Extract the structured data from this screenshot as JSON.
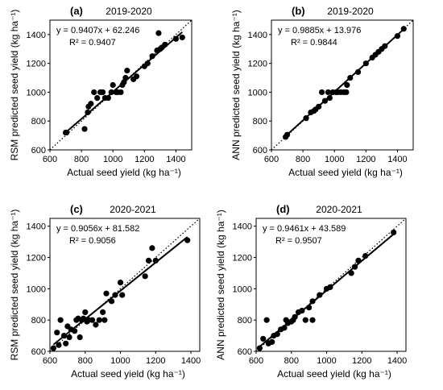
{
  "chart_data": [
    {
      "type": "scatter",
      "panel_label": "(a)",
      "title": "2019-2020",
      "xlabel": "Actual seed yield (kg ha⁻¹)",
      "ylabel": "RSM predicted seed yield (kg ha⁻¹)",
      "xlim": [
        600,
        1500
      ],
      "ylim": [
        600,
        1500
      ],
      "xticks": [
        "600",
        "800",
        "1000",
        "1200",
        "1400"
      ],
      "yticks": [
        "600",
        "800",
        "1000",
        "1200",
        "1400"
      ],
      "equation": "y = 0.9407x + 62.246",
      "r2": "R² = 0.9407",
      "fit": {
        "slope": 0.9407,
        "intercept": 62.246
      },
      "has_1to1_line": true,
      "points": [
        [
          700,
          720
        ],
        [
          705,
          720
        ],
        [
          820,
          745
        ],
        [
          840,
          860
        ],
        [
          845,
          900
        ],
        [
          860,
          920
        ],
        [
          880,
          1000
        ],
        [
          900,
          960
        ],
        [
          920,
          1000
        ],
        [
          935,
          1000
        ],
        [
          950,
          960
        ],
        [
          970,
          960
        ],
        [
          990,
          1000
        ],
        [
          1000,
          1050
        ],
        [
          1020,
          1000
        ],
        [
          1030,
          1000
        ],
        [
          1050,
          1000
        ],
        [
          1060,
          1050
        ],
        [
          1070,
          1070
        ],
        [
          1080,
          1100
        ],
        [
          1090,
          1150
        ],
        [
          1130,
          1090
        ],
        [
          1150,
          1110
        ],
        [
          1200,
          1180
        ],
        [
          1220,
          1200
        ],
        [
          1250,
          1250
        ],
        [
          1280,
          1290
        ],
        [
          1290,
          1410
        ],
        [
          1300,
          1300
        ],
        [
          1310,
          1310
        ],
        [
          1330,
          1330
        ],
        [
          1400,
          1370
        ],
        [
          1440,
          1380
        ]
      ]
    },
    {
      "type": "scatter",
      "panel_label": "(b)",
      "title": "2019-2020",
      "xlabel": "Actual seed yield (kg ha⁻¹)",
      "ylabel": "ANN predicted seed yield (kg ha⁻¹)",
      "xlim": [
        600,
        1500
      ],
      "ylim": [
        600,
        1500
      ],
      "xticks": [
        "600",
        "800",
        "1000",
        "1200",
        "1400"
      ],
      "yticks": [
        "600",
        "800",
        "1000",
        "1200",
        "1400"
      ],
      "equation": "y = 0.9885x + 13.976",
      "r2": "R² = 0.9844",
      "fit": {
        "slope": 0.9885,
        "intercept": 13.976
      },
      "has_1to1_line": true,
      "points": [
        [
          690,
          690
        ],
        [
          700,
          705
        ],
        [
          820,
          820
        ],
        [
          850,
          860
        ],
        [
          870,
          870
        ],
        [
          880,
          880
        ],
        [
          900,
          900
        ],
        [
          920,
          1000
        ],
        [
          940,
          940
        ],
        [
          960,
          1000
        ],
        [
          970,
          960
        ],
        [
          990,
          1000
        ],
        [
          1010,
          1000
        ],
        [
          1020,
          1000
        ],
        [
          1040,
          1000
        ],
        [
          1060,
          1000
        ],
        [
          1075,
          1000
        ],
        [
          1080,
          1050
        ],
        [
          1100,
          1100
        ],
        [
          1150,
          1140
        ],
        [
          1200,
          1200
        ],
        [
          1240,
          1240
        ],
        [
          1260,
          1260
        ],
        [
          1280,
          1280
        ],
        [
          1300,
          1300
        ],
        [
          1320,
          1320
        ],
        [
          1400,
          1390
        ],
        [
          1440,
          1440
        ]
      ]
    },
    {
      "type": "scatter",
      "panel_label": "(c)",
      "title": "2020-2021",
      "xlabel": "Actual seed yield (kg ha⁻¹)",
      "ylabel": "RSM predicted seed yield (kg ha⁻¹)",
      "xlim": [
        600,
        1450
      ],
      "ylim": [
        600,
        1450
      ],
      "xticks": [
        "600",
        "800",
        "1000",
        "1200",
        "1400"
      ],
      "yticks": [
        "600",
        "800",
        "1000",
        "1200",
        "1400"
      ],
      "equation": "y = 0.9056x + 81.582",
      "r2": "R² = 0.9056",
      "fit": {
        "slope": 0.9056,
        "intercept": 81.582
      },
      "has_1to1_line": true,
      "points": [
        [
          620,
          620
        ],
        [
          640,
          720
        ],
        [
          650,
          640
        ],
        [
          660,
          800
        ],
        [
          680,
          700
        ],
        [
          690,
          650
        ],
        [
          700,
          760
        ],
        [
          710,
          690
        ],
        [
          720,
          740
        ],
        [
          740,
          730
        ],
        [
          750,
          800
        ],
        [
          760,
          810
        ],
        [
          770,
          690
        ],
        [
          780,
          800
        ],
        [
          790,
          810
        ],
        [
          800,
          850
        ],
        [
          810,
          790
        ],
        [
          820,
          800
        ],
        [
          840,
          800
        ],
        [
          860,
          770
        ],
        [
          880,
          800
        ],
        [
          900,
          850
        ],
        [
          910,
          800
        ],
        [
          920,
          970
        ],
        [
          950,
          920
        ],
        [
          970,
          960
        ],
        [
          1000,
          1040
        ],
        [
          1010,
          960
        ],
        [
          1140,
          1080
        ],
        [
          1160,
          1180
        ],
        [
          1180,
          1260
        ],
        [
          1200,
          1180
        ],
        [
          1380,
          1310
        ]
      ]
    },
    {
      "type": "scatter",
      "panel_label": "(d)",
      "title": "2020-2021",
      "xlabel": "Actual seed yield (kg ha⁻¹)",
      "ylabel": "ANN predicted seed yield (kg ha⁻¹)",
      "xlim": [
        600,
        1450
      ],
      "ylim": [
        600,
        1450
      ],
      "xticks": [
        "600",
        "800",
        "1000",
        "1200",
        "1400"
      ],
      "yticks": [
        "600",
        "800",
        "1000",
        "1200",
        "1400"
      ],
      "equation": "y = 0.9461x + 43.589",
      "r2": "R² = 0.9507",
      "fit": {
        "slope": 0.9461,
        "intercept": 43.589
      },
      "has_1to1_line": true,
      "points": [
        [
          620,
          620
        ],
        [
          640,
          680
        ],
        [
          660,
          800
        ],
        [
          670,
          650
        ],
        [
          690,
          660
        ],
        [
          700,
          700
        ],
        [
          720,
          710
        ],
        [
          740,
          740
        ],
        [
          760,
          750
        ],
        [
          770,
          800
        ],
        [
          780,
          780
        ],
        [
          800,
          790
        ],
        [
          810,
          800
        ],
        [
          820,
          820
        ],
        [
          840,
          850
        ],
        [
          860,
          860
        ],
        [
          880,
          800
        ],
        [
          900,
          880
        ],
        [
          920,
          800
        ],
        [
          920,
          920
        ],
        [
          960,
          960
        ],
        [
          1000,
          1000
        ],
        [
          1020,
          1010
        ],
        [
          1140,
          1100
        ],
        [
          1160,
          1140
        ],
        [
          1180,
          1180
        ],
        [
          1220,
          1210
        ],
        [
          1380,
          1360
        ]
      ]
    }
  ]
}
